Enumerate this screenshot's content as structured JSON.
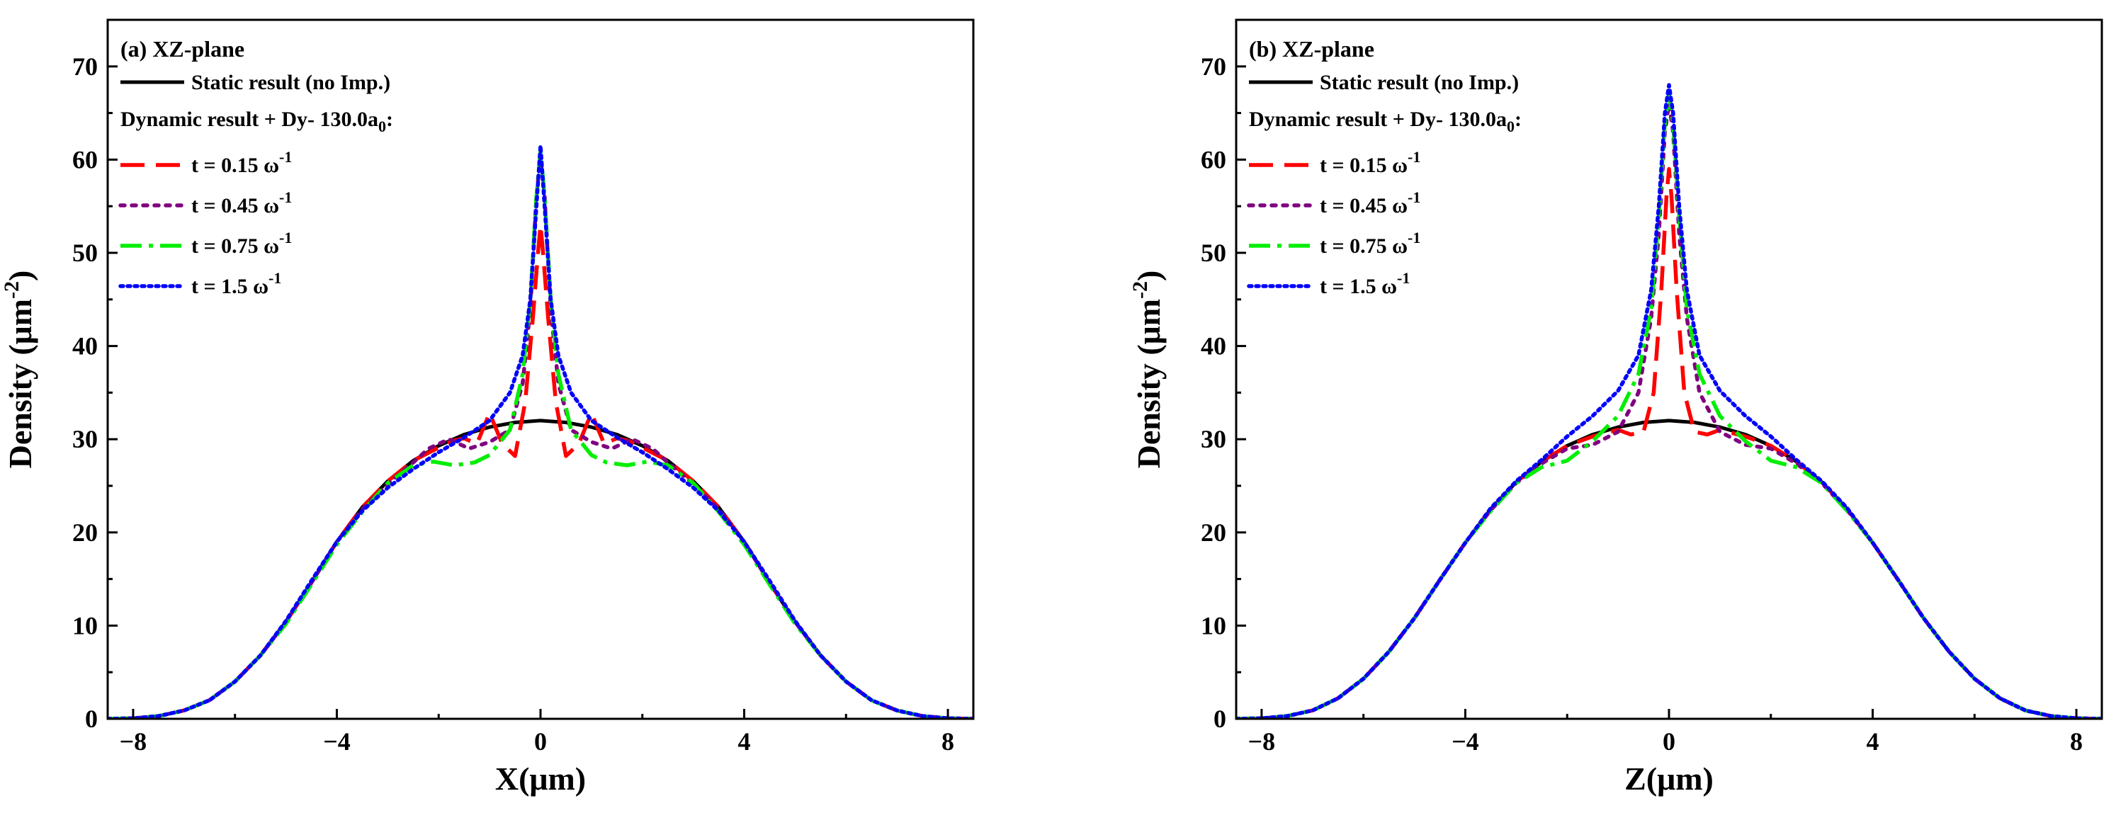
{
  "figure": {
    "colors": {
      "static": "#000000",
      "t015": "#ff0000",
      "t045": "#800080",
      "t075": "#00ee00",
      "t15": "#0000ff"
    }
  },
  "chart_data": [
    {
      "type": "line",
      "panel_title": "(a) XZ-plane",
      "xlabel": "X(μm)",
      "ylabel": "Density (μm",
      "ylabel_sup": "-2",
      "ylabel_close": ")",
      "xlim": [
        -8.5,
        8.5
      ],
      "ylim": [
        0,
        75
      ],
      "xticks": [
        -8,
        -4,
        0,
        4,
        8
      ],
      "xtick_labels": [
        "−8",
        "−4",
        "0",
        "4",
        "8"
      ],
      "yticks": [
        0,
        10,
        20,
        30,
        40,
        50,
        60,
        70
      ],
      "ytick_labels": [
        "0",
        "10",
        "20",
        "30",
        "40",
        "50",
        "60",
        "70"
      ],
      "legend": {
        "static_label": "Static result (no Imp.)",
        "dynamic_header": "Dynamic result + Dy- 130.0a",
        "dynamic_header_sub": "0",
        "dynamic_header_end": ":",
        "series_labels": [
          {
            "text": "t = 0.15 ω",
            "sup": "-1"
          },
          {
            "text": "t = 0.45 ω",
            "sup": "-1"
          },
          {
            "text": "t = 0.75 ω",
            "sup": "-1"
          },
          {
            "text": "t = 1.5 ω",
            "sup": "-1"
          }
        ]
      },
      "series": [
        {
          "name": "Static result (no Imp.)",
          "style": "solid",
          "color_key": "static",
          "x": [
            -8.5,
            -8,
            -7.5,
            -7,
            -6.5,
            -6,
            -5.5,
            -5,
            -4.5,
            -4,
            -3.5,
            -3,
            -2.5,
            -2,
            -1.5,
            -1,
            -0.5,
            0,
            0.5,
            1,
            1.5,
            2,
            2.5,
            3,
            3.5,
            4,
            4.5,
            5,
            5.5,
            6,
            6.5,
            7,
            7.5,
            8,
            8.5
          ],
          "y": [
            0,
            0.05,
            0.3,
            0.9,
            2,
            4,
            6.8,
            10.4,
            14.6,
            19,
            22.7,
            25.5,
            27.7,
            29.3,
            30.5,
            31.3,
            31.8,
            32,
            31.8,
            31.3,
            30.5,
            29.3,
            27.7,
            25.5,
            22.7,
            19,
            14.6,
            10.4,
            6.8,
            4,
            2,
            0.9,
            0.3,
            0.05,
            0
          ]
        },
        {
          "name": "t = 0.15 ω-1",
          "style": "dash",
          "color_key": "t015",
          "x": [
            -8.5,
            -8,
            -7.5,
            -7,
            -6.5,
            -6,
            -5.5,
            -5,
            -4.5,
            -4,
            -3.5,
            -3,
            -2.5,
            -2,
            -1.75,
            -1.5,
            -1.25,
            -1,
            -0.75,
            -0.5,
            -0.3,
            -0.15,
            -0.05,
            0,
            0.05,
            0.15,
            0.3,
            0.5,
            0.75,
            1,
            1.25,
            1.5,
            1.75,
            2,
            2.5,
            3,
            3.5,
            4,
            4.5,
            5,
            5.5,
            6,
            6.5,
            7,
            7.5,
            8,
            8.5
          ],
          "y": [
            0,
            0.05,
            0.3,
            0.9,
            2,
            4,
            6.8,
            10.4,
            14.6,
            19,
            22.7,
            25.5,
            27.7,
            29.1,
            29.8,
            30.1,
            29.5,
            32.8,
            29.5,
            28.2,
            34,
            43,
            50,
            53,
            50,
            43,
            34,
            28.2,
            29.5,
            32.8,
            29.5,
            30.1,
            29.8,
            29.1,
            27.7,
            25.5,
            22.7,
            19,
            14.6,
            10.4,
            6.8,
            4,
            2,
            0.9,
            0.3,
            0.05,
            0
          ]
        },
        {
          "name": "t = 0.45 ω-1",
          "style": "dot",
          "color_key": "t045",
          "x": [
            -8.5,
            -8,
            -7.5,
            -7,
            -6.5,
            -6,
            -5.5,
            -5,
            -4.5,
            -4,
            -3.5,
            -3,
            -2.5,
            -2.2,
            -1.8,
            -1.4,
            -1,
            -0.6,
            -0.35,
            -0.2,
            -0.08,
            0,
            0.08,
            0.2,
            0.35,
            0.6,
            1,
            1.4,
            1.8,
            2.2,
            2.5,
            3,
            3.5,
            4,
            4.5,
            5,
            5.5,
            6,
            6.5,
            7,
            7.5,
            8,
            8.5
          ],
          "y": [
            0,
            0.05,
            0.3,
            0.9,
            2,
            4,
            6.8,
            10.4,
            14.6,
            19,
            22.5,
            25.2,
            27.5,
            29,
            30,
            29,
            29.7,
            31,
            36,
            44,
            56,
            60.5,
            56,
            44,
            36,
            31,
            29.7,
            29,
            30,
            29,
            27.5,
            25.2,
            22.5,
            19,
            14.6,
            10.4,
            6.8,
            4,
            2,
            0.9,
            0.3,
            0.05,
            0
          ]
        },
        {
          "name": "t = 0.75 ω-1",
          "style": "dashdot",
          "color_key": "t075",
          "x": [
            -8.5,
            -8,
            -7.5,
            -7,
            -6.5,
            -6,
            -5.5,
            -5,
            -4.5,
            -4,
            -3.5,
            -3,
            -2.5,
            -2.1,
            -1.7,
            -1.3,
            -1,
            -0.6,
            -0.35,
            -0.2,
            -0.08,
            0,
            0.08,
            0.2,
            0.35,
            0.6,
            1,
            1.3,
            1.7,
            2.1,
            2.5,
            3,
            3.5,
            4,
            4.5,
            5,
            5.5,
            6,
            6.5,
            7,
            7.5,
            8,
            8.5
          ],
          "y": [
            0,
            0.05,
            0.3,
            0.9,
            2,
            4,
            6.8,
            10.2,
            14.4,
            18.7,
            22.2,
            25.3,
            27.2,
            27.6,
            27.2,
            27.5,
            28.3,
            31,
            37,
            45,
            56,
            61,
            56,
            45,
            37,
            31,
            28.3,
            27.5,
            27.2,
            27.6,
            27.2,
            25.3,
            22.2,
            18.7,
            14.4,
            10.2,
            6.8,
            4,
            2,
            0.9,
            0.3,
            0.05,
            0
          ]
        },
        {
          "name": "t = 1.5 ω-1",
          "style": "dotted",
          "color_key": "t15",
          "x": [
            -8.5,
            -8,
            -7.5,
            -7,
            -6.5,
            -6,
            -5.5,
            -5,
            -4.5,
            -4,
            -3.5,
            -3,
            -2.5,
            -2,
            -1.5,
            -1,
            -0.6,
            -0.35,
            -0.2,
            -0.08,
            0,
            0.08,
            0.2,
            0.35,
            0.6,
            1,
            1.5,
            2,
            2.5,
            3,
            3.5,
            4,
            4.5,
            5,
            5.5,
            6,
            6.5,
            7,
            7.5,
            8,
            8.5
          ],
          "y": [
            0,
            0.05,
            0.3,
            0.9,
            2,
            4,
            6.8,
            10.5,
            14.8,
            19,
            22.3,
            24.8,
            26.8,
            28.6,
            30.2,
            32,
            35,
            39,
            45,
            55,
            61.5,
            55,
            45,
            39,
            35,
            32,
            30.2,
            28.6,
            26.8,
            24.8,
            22.3,
            19,
            14.8,
            10.5,
            6.8,
            4,
            2,
            0.9,
            0.3,
            0.05,
            0
          ]
        }
      ]
    },
    {
      "type": "line",
      "panel_title": "(b) XZ-plane",
      "xlabel": "Z(μm)",
      "ylabel": "Density (μm",
      "ylabel_sup": "-2",
      "ylabel_close": ")",
      "xlim": [
        -8.5,
        8.5
      ],
      "ylim": [
        0,
        75
      ],
      "xticks": [
        -8,
        -4,
        0,
        4,
        8
      ],
      "xtick_labels": [
        "−8",
        "−4",
        "0",
        "4",
        "8"
      ],
      "yticks": [
        0,
        10,
        20,
        30,
        40,
        50,
        60,
        70
      ],
      "ytick_labels": [
        "0",
        "10",
        "20",
        "30",
        "40",
        "50",
        "60",
        "70"
      ],
      "legend": {
        "static_label": "Static result (no Imp.)",
        "dynamic_header": "Dynamic result + Dy- 130.0a",
        "dynamic_header_sub": "0",
        "dynamic_header_end": ":",
        "series_labels": [
          {
            "text": "t = 0.15 ω",
            "sup": "-1"
          },
          {
            "text": "t = 0.45 ω",
            "sup": "-1"
          },
          {
            "text": "t = 0.75 ω",
            "sup": "-1"
          },
          {
            "text": "t = 1.5 ω",
            "sup": "-1"
          }
        ]
      },
      "series": [
        {
          "name": "Static result (no Imp.)",
          "style": "solid",
          "color_key": "static",
          "x": [
            -8.5,
            -8,
            -7.5,
            -7,
            -6.5,
            -6,
            -5.5,
            -5,
            -4.5,
            -4,
            -3.5,
            -3,
            -2.5,
            -2,
            -1.5,
            -1,
            -0.5,
            0,
            0.5,
            1,
            1.5,
            2,
            2.5,
            3,
            3.5,
            4,
            4.5,
            5,
            5.5,
            6,
            6.5,
            7,
            7.5,
            8,
            8.5
          ],
          "y": [
            0,
            0.05,
            0.3,
            0.9,
            2.2,
            4.3,
            7.2,
            10.8,
            14.9,
            18.9,
            22.5,
            25.4,
            27.6,
            29.3,
            30.5,
            31.3,
            31.8,
            32,
            31.8,
            31.3,
            30.5,
            29.3,
            27.6,
            25.4,
            22.5,
            18.9,
            14.9,
            10.8,
            7.2,
            4.3,
            2.2,
            0.9,
            0.3,
            0.05,
            0
          ]
        },
        {
          "name": "t = 0.15 ω-1",
          "style": "dash",
          "color_key": "t015",
          "x": [
            -8.5,
            -8,
            -7.5,
            -7,
            -6.5,
            -6,
            -5.5,
            -5,
            -4.5,
            -4,
            -3.5,
            -3,
            -2.5,
            -2,
            -1.5,
            -1,
            -0.75,
            -0.5,
            -0.3,
            -0.15,
            -0.05,
            0,
            0.05,
            0.15,
            0.3,
            0.5,
            0.75,
            1,
            1.5,
            2,
            2.5,
            3,
            3.5,
            4,
            4.5,
            5,
            5.5,
            6,
            6.5,
            7,
            7.5,
            8,
            8.5
          ],
          "y": [
            0,
            0.05,
            0.3,
            0.9,
            2.2,
            4.3,
            7.2,
            10.8,
            14.9,
            18.9,
            22.5,
            25.4,
            27.6,
            29.3,
            30.3,
            31,
            30.5,
            30.8,
            35,
            46,
            56,
            59,
            56,
            46,
            35,
            30.8,
            30.5,
            31,
            30.3,
            29.3,
            27.6,
            25.4,
            22.5,
            18.9,
            14.9,
            10.8,
            7.2,
            4.3,
            2.2,
            0.9,
            0.3,
            0.05,
            0
          ]
        },
        {
          "name": "t = 0.45 ω-1",
          "style": "dot",
          "color_key": "t045",
          "x": [
            -8.5,
            -8,
            -7.5,
            -7,
            -6.5,
            -6,
            -5.5,
            -5,
            -4.5,
            -4,
            -3.5,
            -3,
            -2.5,
            -2,
            -1.5,
            -1,
            -0.6,
            -0.35,
            -0.2,
            -0.08,
            0,
            0.08,
            0.2,
            0.35,
            0.6,
            1,
            1.5,
            2,
            2.5,
            3,
            3.5,
            4,
            4.5,
            5,
            5.5,
            6,
            6.5,
            7,
            7.5,
            8,
            8.5
          ],
          "y": [
            0,
            0.05,
            0.3,
            0.9,
            2.2,
            4.3,
            7.2,
            10.8,
            14.9,
            18.9,
            22.4,
            25.3,
            27.4,
            29,
            29.4,
            30.8,
            35,
            43,
            52,
            63,
            66,
            63,
            52,
            43,
            35,
            30.8,
            29.4,
            29,
            27.4,
            25.3,
            22.4,
            18.9,
            14.9,
            10.8,
            7.2,
            4.3,
            2.2,
            0.9,
            0.3,
            0.05,
            0
          ]
        },
        {
          "name": "t = 0.75 ω-1",
          "style": "dashdot",
          "color_key": "t075",
          "x": [
            -8.5,
            -8,
            -7.5,
            -7,
            -6.5,
            -6,
            -5.5,
            -5,
            -4.5,
            -4,
            -3.5,
            -3,
            -2.5,
            -2,
            -1.5,
            -1,
            -0.6,
            -0.35,
            -0.2,
            -0.08,
            0,
            0.08,
            0.2,
            0.35,
            0.6,
            1,
            1.5,
            2,
            2.5,
            3,
            3.5,
            4,
            4.5,
            5,
            5.5,
            6,
            6.5,
            7,
            7.5,
            8,
            8.5
          ],
          "y": [
            0,
            0.05,
            0.3,
            0.9,
            2.2,
            4.3,
            7.2,
            10.8,
            14.9,
            18.9,
            22.3,
            25.3,
            27,
            27.7,
            29.8,
            32.5,
            37,
            44,
            54,
            64,
            67,
            64,
            54,
            44,
            37,
            32.5,
            29.8,
            27.7,
            27,
            25.3,
            22.3,
            18.9,
            14.9,
            10.8,
            7.2,
            4.3,
            2.2,
            0.9,
            0.3,
            0.05,
            0
          ]
        },
        {
          "name": "t = 1.5 ω-1",
          "style": "dotted",
          "color_key": "t15",
          "x": [
            -8.5,
            -8,
            -7.5,
            -7,
            -6.5,
            -6,
            -5.5,
            -5,
            -4.5,
            -4,
            -3.5,
            -3,
            -2.5,
            -2,
            -1.5,
            -1,
            -0.6,
            -0.35,
            -0.2,
            -0.08,
            0,
            0.08,
            0.2,
            0.35,
            0.6,
            1,
            1.5,
            2,
            2.5,
            3,
            3.5,
            4,
            4.5,
            5,
            5.5,
            6,
            6.5,
            7,
            7.5,
            8,
            8.5
          ],
          "y": [
            0,
            0.05,
            0.3,
            0.9,
            2.2,
            4.3,
            7.2,
            10.8,
            14.9,
            18.9,
            22.6,
            25.5,
            27.8,
            30.3,
            32.5,
            35.2,
            39,
            46,
            55,
            65,
            68,
            65,
            55,
            46,
            39,
            35.2,
            32.5,
            30.3,
            27.8,
            25.5,
            22.6,
            18.9,
            14.9,
            10.8,
            7.2,
            4.3,
            2.2,
            0.9,
            0.3,
            0.05,
            0
          ]
        }
      ]
    }
  ]
}
